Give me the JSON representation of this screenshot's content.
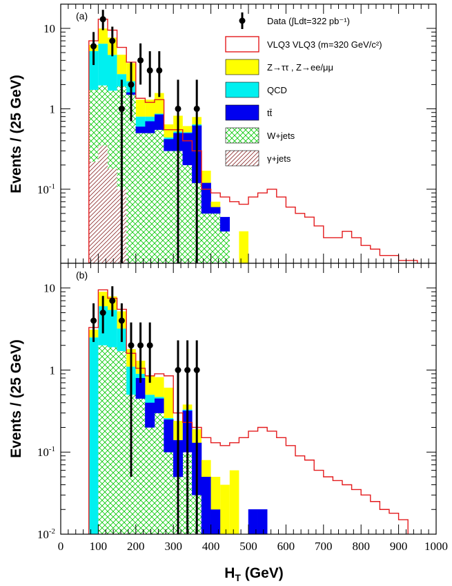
{
  "chart_data": {
    "type": "histogram",
    "xlabel": "H",
    "xlabel_sub": "T",
    "xlabel_unit": "(GeV)",
    "ylabel": "Events / (25 GeV)",
    "x_ticks": [
      "0",
      "100",
      "200",
      "300",
      "400",
      "500",
      "600",
      "700",
      "800",
      "900",
      "1000"
    ],
    "xlim": [
      0,
      1000
    ],
    "yscale": "log",
    "bin_width": 25,
    "colors": {
      "vlq": "#e31a1c",
      "ztt": "#ffff00",
      "qcd": "#00f0f0",
      "ttbar": "#0000f0",
      "wjets": "#00c800",
      "gjets": "#8b2a2a",
      "data": "#000000"
    },
    "legend": [
      {
        "key": "data",
        "label": "Data (∫Ldt=322 pb⁻¹)"
      },
      {
        "key": "vlq",
        "label": "VLQ3 VLQ3 (m=320 GeV/c²)"
      },
      {
        "key": "ztt",
        "label": "Z→ττ , Z→ee/μμ"
      },
      {
        "key": "qcd",
        "label": "QCD"
      },
      {
        "key": "ttbar",
        "label": "tt̄"
      },
      {
        "key": "wjets",
        "label": "W+jets"
      },
      {
        "key": "gjets",
        "label": "γ+jets"
      }
    ],
    "panels": [
      {
        "label": "(a)",
        "y_ticks": [
          {
            "value": 10,
            "label": "10"
          },
          {
            "value": 1,
            "label": "1"
          },
          {
            "value": 0.1,
            "label": "10-1"
          }
        ],
        "ylim": [
          0.012,
          20
        ],
        "stack": {
          "gjets": [
            [
              75,
              0.22
            ],
            [
              100,
              0.35
            ],
            [
              125,
              0.18
            ],
            [
              150,
              0.1
            ]
          ],
          "wjets": [
            [
              75,
              1.5
            ],
            [
              100,
              1.6
            ],
            [
              125,
              1.5
            ],
            [
              150,
              1.8
            ],
            [
              175,
              1.5
            ],
            [
              200,
              0.5
            ],
            [
              225,
              0.5
            ],
            [
              250,
              0.55
            ],
            [
              275,
              0.3
            ],
            [
              300,
              0.3
            ],
            [
              325,
              0.2
            ],
            [
              350,
              0.12
            ],
            [
              375,
              0.05
            ],
            [
              400,
              0.05
            ],
            [
              425,
              0.03
            ]
          ],
          "ttbar": [
            [
              175,
              0.1
            ],
            [
              200,
              0.1
            ],
            [
              225,
              0.2
            ],
            [
              250,
              0.3
            ],
            [
              275,
              0.12
            ],
            [
              300,
              0.2
            ],
            [
              325,
              0.3
            ],
            [
              350,
              0.5
            ],
            [
              375,
              0.07
            ],
            [
              400,
              0.01
            ],
            [
              425,
              0.015
            ]
          ],
          "qcd": [
            [
              75,
              3.5
            ],
            [
              100,
              4.5
            ],
            [
              125,
              3.0
            ],
            [
              150,
              0.8
            ],
            [
              175,
              0.6
            ],
            [
              200,
              0.2
            ],
            [
              225,
              0.1
            ],
            [
              250,
              0.02
            ],
            [
              275,
              0.02
            ],
            [
              300,
              0.02
            ],
            [
              325,
              0.01
            ],
            [
              350,
              0.02
            ]
          ],
          "ztt": [
            [
              75,
              1.0
            ],
            [
              100,
              3.5
            ],
            [
              125,
              3.0
            ],
            [
              150,
              2.0
            ],
            [
              175,
              1.5
            ],
            [
              200,
              0.5
            ],
            [
              225,
              0.5
            ],
            [
              250,
              0.7
            ],
            [
              275,
              0.2
            ],
            [
              300,
              0.3
            ],
            [
              325,
              0.1
            ],
            [
              350,
              0.15
            ],
            [
              375,
              0.05
            ],
            [
              400,
              0.01
            ],
            [
              475,
              0.03
            ]
          ]
        },
        "vlq_x": [
          75,
          100,
          125,
          150,
          175,
          200,
          225,
          250,
          275,
          300,
          325,
          350,
          375,
          400,
          425,
          450,
          475,
          500,
          525,
          550,
          575,
          600,
          625,
          650,
          675,
          700,
          725,
          750,
          775,
          800,
          825,
          850,
          875,
          900,
          925
        ],
        "vlq_y": [
          7.0,
          13.0,
          9.5,
          5.8,
          3.8,
          1.35,
          1.2,
          1.3,
          0.55,
          0.55,
          0.4,
          0.3,
          0.1,
          0.09,
          0.08,
          0.07,
          0.065,
          0.08,
          0.09,
          0.1,
          0.08,
          0.06,
          0.05,
          0.045,
          0.035,
          0.025,
          0.025,
          0.03,
          0.025,
          0.02,
          0.018,
          0.015,
          0.015,
          0.013,
          0.013
        ],
        "data": [
          {
            "x": 87.5,
            "y": 6,
            "lo": 3.5,
            "hi": 9
          },
          {
            "x": 112.5,
            "y": 13,
            "lo": 9.5,
            "hi": 17
          },
          {
            "x": 137.5,
            "y": 7,
            "lo": 4.5,
            "hi": 10.5
          },
          {
            "x": 162.5,
            "y": 1,
            "lo": 0.012,
            "hi": 2.3
          },
          {
            "x": 187.5,
            "y": 2,
            "lo": 0.7,
            "hi": 3.8
          },
          {
            "x": 212.5,
            "y": 4,
            "lo": 2.0,
            "hi": 6.5
          },
          {
            "x": 237.5,
            "y": 3,
            "lo": 1.4,
            "hi": 5.2
          },
          {
            "x": 262.5,
            "y": 3,
            "lo": 1.4,
            "hi": 5.2
          },
          {
            "x": 312.5,
            "y": 1,
            "lo": 0.012,
            "hi": 2.3
          },
          {
            "x": 362.5,
            "y": 1,
            "lo": 0.012,
            "hi": 2.3
          }
        ]
      },
      {
        "label": "(b)",
        "y_ticks": [
          {
            "value": 10,
            "label": "10"
          },
          {
            "value": 1,
            "label": "1"
          },
          {
            "value": 0.1,
            "label": "10-1"
          },
          {
            "value": 0.01,
            "label": "10-2"
          }
        ],
        "ylim": [
          0.01,
          20
        ],
        "stack": {
          "gjets": [],
          "wjets": [
            [
              100,
              2.0
            ],
            [
              125,
              1.9
            ],
            [
              150,
              1.7
            ],
            [
              175,
              0.5
            ],
            [
              200,
              0.45
            ],
            [
              225,
              0.2
            ],
            [
              250,
              0.3
            ],
            [
              275,
              0.1
            ],
            [
              300,
              0.05
            ],
            [
              325,
              0.1
            ],
            [
              350,
              0.03
            ]
          ],
          "ttbar": [
            [
              200,
              0.35
            ],
            [
              225,
              0.2
            ],
            [
              250,
              0.15
            ],
            [
              275,
              0.15
            ],
            [
              300,
              0.09
            ],
            [
              325,
              0.22
            ],
            [
              350,
              0.1
            ],
            [
              375,
              0.05
            ],
            [
              400,
              0.02
            ],
            [
              500,
              0.02
            ],
            [
              525,
              0.02
            ]
          ],
          "qcd": [
            [
              75,
              2.5
            ],
            [
              100,
              4.0
            ],
            [
              125,
              3.5
            ],
            [
              150,
              1.5
            ],
            [
              175,
              0.6
            ],
            [
              200,
              0.1
            ],
            [
              225,
              0.1
            ],
            [
              250,
              0.02
            ],
            [
              275,
              0.01
            ],
            [
              325,
              0.01
            ]
          ],
          "ztt": [
            [
              75,
              0.6
            ],
            [
              100,
              3.0
            ],
            [
              125,
              2.5
            ],
            [
              150,
              2.0
            ],
            [
              175,
              0.7
            ],
            [
              200,
              0.4
            ],
            [
              225,
              0.35
            ],
            [
              250,
              0.35
            ],
            [
              275,
              0.35
            ],
            [
              300,
              0.1
            ],
            [
              325,
              0.05
            ],
            [
              350,
              0.06
            ],
            [
              375,
              0.03
            ],
            [
              400,
              0.03
            ],
            [
              425,
              0.04
            ],
            [
              450,
              0.06
            ]
          ]
        },
        "vlq_x": [
          75,
          100,
          125,
          150,
          175,
          200,
          225,
          250,
          275,
          300,
          325,
          350,
          375,
          400,
          425,
          450,
          475,
          500,
          525,
          550,
          575,
          600,
          625,
          650,
          675,
          700,
          725,
          750,
          775,
          800,
          825,
          850,
          875,
          900
        ],
        "vlq_y": [
          3.3,
          9.5,
          7.5,
          5.5,
          1.6,
          1.05,
          0.85,
          0.9,
          0.85,
          0.3,
          0.23,
          0.2,
          0.15,
          0.13,
          0.12,
          0.13,
          0.15,
          0.18,
          0.2,
          0.18,
          0.15,
          0.12,
          0.09,
          0.08,
          0.06,
          0.05,
          0.045,
          0.04,
          0.035,
          0.03,
          0.025,
          0.02,
          0.018,
          0.015
        ],
        "data": [
          {
            "x": 87.5,
            "y": 4,
            "lo": 2.2,
            "hi": 6.5
          },
          {
            "x": 112.5,
            "y": 5,
            "lo": 2.8,
            "hi": 8
          },
          {
            "x": 137.5,
            "y": 7,
            "lo": 4.5,
            "hi": 10.5
          },
          {
            "x": 162.5,
            "y": 4,
            "lo": 2.2,
            "hi": 6.5
          },
          {
            "x": 187.5,
            "y": 2,
            "lo": 0.05,
            "hi": 3.8
          },
          {
            "x": 212.5,
            "y": 2,
            "lo": 0.7,
            "hi": 3.8
          },
          {
            "x": 237.5,
            "y": 2,
            "lo": 0.7,
            "hi": 3.8
          },
          {
            "x": 312.5,
            "y": 1,
            "lo": 0.01,
            "hi": 2.3
          },
          {
            "x": 337.5,
            "y": 1,
            "lo": 0.01,
            "hi": 2.3
          },
          {
            "x": 362.5,
            "y": 1,
            "lo": 0.01,
            "hi": 2.3
          }
        ]
      }
    ]
  }
}
